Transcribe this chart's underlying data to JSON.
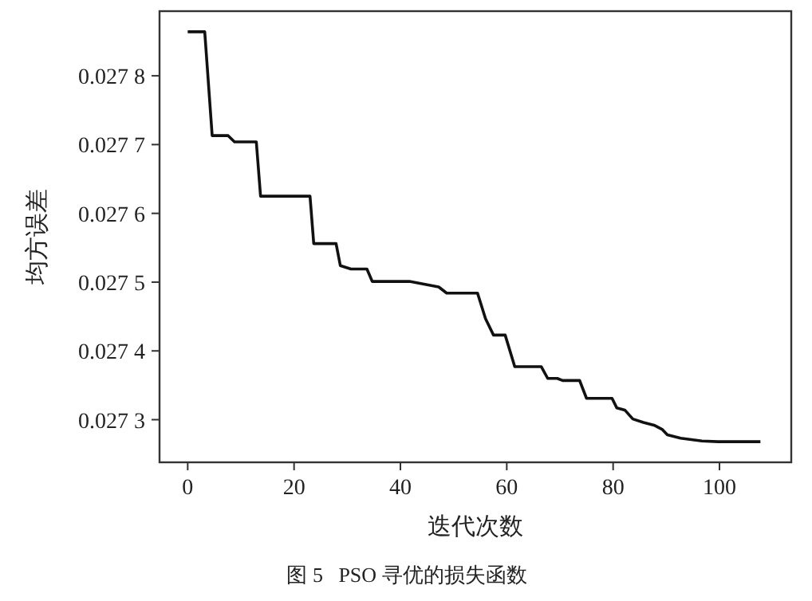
{
  "chart_data": {
    "type": "line",
    "title": "图 5   PSO 寻优的损失函数",
    "xlabel": "迭代次数",
    "ylabel": "均方误差",
    "xlim": [
      -5.3,
      113.5
    ],
    "xticks": [
      0,
      20,
      40,
      60,
      80,
      100
    ],
    "ylim": [
      0.027238,
      0.027894
    ],
    "yticks": [
      0.0273,
      0.0274,
      0.0275,
      0.0276,
      0.0277,
      0.0278
    ],
    "grid": false,
    "marker": "none",
    "line_style": "solid",
    "series": [
      {
        "color": "#111111",
        "x": [
          0,
          3.2,
          4.6,
          7.6,
          8.8,
          12.9,
          13.7,
          23,
          23.7,
          27.9,
          28.7,
          30.7,
          33.7,
          34.7,
          41.7,
          47.2,
          48.7,
          54.5,
          56,
          57.5,
          59.7,
          61.5,
          66.5,
          67.7,
          69.5,
          70.5,
          73.7,
          75,
          79.8,
          80.7,
          82.2,
          83.7,
          85.7,
          87.7,
          89.2,
          90.2,
          92.7,
          96.7,
          99.7,
          107.7
        ],
        "values": [
          0.027864,
          0.027864,
          0.027713,
          0.027713,
          0.027704,
          0.027704,
          0.027625,
          0.027625,
          0.027556,
          0.027556,
          0.027524,
          0.027519,
          0.027519,
          0.027501,
          0.027501,
          0.027493,
          0.027484,
          0.027484,
          0.027447,
          0.027423,
          0.027423,
          0.027377,
          0.027377,
          0.02736,
          0.02736,
          0.027357,
          0.027357,
          0.027331,
          0.027331,
          0.027317,
          0.027314,
          0.027301,
          0.027296,
          0.027292,
          0.027286,
          0.027278,
          0.027273,
          0.027269,
          0.027268,
          0.027268
        ]
      }
    ]
  }
}
